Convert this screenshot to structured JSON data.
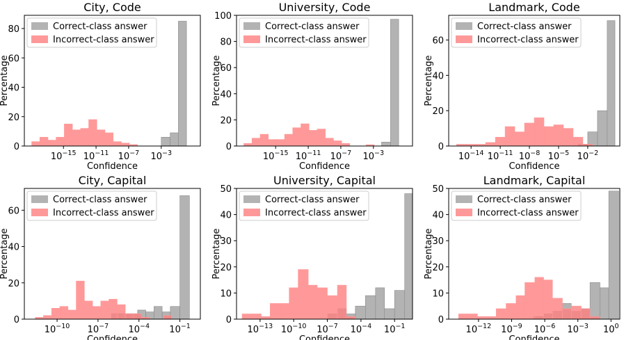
{
  "legend_labels": {
    "correct": "Correct-class answer",
    "incorrect": "Incorrect-class answer"
  },
  "colors": {
    "correct": "#a0a0a0",
    "incorrect": "#ff8080",
    "overlap": "#b25a5a"
  },
  "chart_data": [
    {
      "type": "histogram",
      "title": "City, Code",
      "xlabel": "Confidence",
      "ylabel": "Percentage",
      "x_scale": "log10",
      "x_ticks": [
        "10^-15",
        "10^-11",
        "10^-7",
        "10^-3"
      ],
      "xlim_log10": [
        -19.8,
        1.8
      ],
      "ylim": [
        0,
        89
      ],
      "y_ticks": [
        0,
        20,
        40,
        60,
        80
      ],
      "legend_position": "upper-left",
      "series": [
        {
          "name": "Correct-class answer",
          "bins": [
            {
              "from": -3.0,
              "to": -1.9,
              "value": 6
            },
            {
              "from": -1.9,
              "to": -0.9,
              "value": 9
            },
            {
              "from": -0.9,
              "to": 0.1,
              "value": 85
            }
          ]
        },
        {
          "name": "Incorrect-class answer",
          "bins": [
            {
              "from": -18.9,
              "to": -17.9,
              "value": 3
            },
            {
              "from": -17.9,
              "to": -16.9,
              "value": 6
            },
            {
              "from": -16.9,
              "to": -15.9,
              "value": 4
            },
            {
              "from": -15.9,
              "to": -14.9,
              "value": 6
            },
            {
              "from": -14.9,
              "to": -13.9,
              "value": 15
            },
            {
              "from": -13.9,
              "to": -12.9,
              "value": 11
            },
            {
              "from": -12.9,
              "to": -11.9,
              "value": 12
            },
            {
              "from": -11.9,
              "to": -10.9,
              "value": 18
            },
            {
              "from": -10.9,
              "to": -9.9,
              "value": 11
            },
            {
              "from": -9.9,
              "to": -8.9,
              "value": 9
            },
            {
              "from": -8.9,
              "to": -7.9,
              "value": 3
            },
            {
              "from": -7.9,
              "to": -6.9,
              "value": 2
            },
            {
              "from": -6.9,
              "to": -5.9,
              "value": 1
            }
          ]
        }
      ]
    },
    {
      "type": "histogram",
      "title": "University, Code",
      "xlabel": "Confidence",
      "ylabel": "Percentage",
      "x_scale": "log10",
      "x_ticks": [
        "10^-15",
        "10^-11",
        "10^-7",
        "10^-3"
      ],
      "xlim_log10": [
        -19.8,
        1.8
      ],
      "ylim": [
        0,
        100
      ],
      "y_ticks": [
        0,
        20,
        40,
        60,
        80,
        100
      ],
      "legend_position": "upper-left",
      "series": [
        {
          "name": "Correct-class answer",
          "bins": [
            {
              "from": -2.0,
              "to": -0.9,
              "value": 3
            },
            {
              "from": -0.9,
              "to": 0.1,
              "value": 97
            }
          ]
        },
        {
          "name": "Incorrect-class answer",
          "bins": [
            {
              "from": -18.9,
              "to": -17.9,
              "value": 2
            },
            {
              "from": -17.9,
              "to": -16.9,
              "value": 6
            },
            {
              "from": -16.9,
              "to": -15.9,
              "value": 9
            },
            {
              "from": -15.9,
              "to": -14.9,
              "value": 5
            },
            {
              "from": -14.9,
              "to": -13.9,
              "value": 5
            },
            {
              "from": -13.9,
              "to": -12.9,
              "value": 9
            },
            {
              "from": -12.9,
              "to": -11.9,
              "value": 14
            },
            {
              "from": -11.9,
              "to": -10.9,
              "value": 17
            },
            {
              "from": -10.9,
              "to": -9.9,
              "value": 12
            },
            {
              "from": -9.9,
              "to": -8.9,
              "value": 13
            },
            {
              "from": -8.9,
              "to": -7.9,
              "value": 6
            },
            {
              "from": -7.9,
              "to": -6.9,
              "value": 4
            },
            {
              "from": -6.9,
              "to": -5.9,
              "value": 2
            },
            {
              "from": -3.9,
              "to": -2.9,
              "value": 1
            }
          ]
        }
      ]
    },
    {
      "type": "histogram",
      "title": "Landmark, Code",
      "xlabel": "Confidence",
      "ylabel": "Percentage",
      "x_scale": "log10",
      "x_ticks": [
        "10^-14",
        "10^-11",
        "10^-8",
        "10^-5",
        "10^-2"
      ],
      "xlim_log10": [
        -16.3,
        1.3
      ],
      "ylim": [
        0,
        74
      ],
      "y_ticks": [
        0,
        20,
        40,
        60
      ],
      "legend_position": "upper-left",
      "series": [
        {
          "name": "Correct-class answer",
          "bins": [
            {
              "from": -3.0,
              "to": -2.0,
              "value": 1
            },
            {
              "from": -2.0,
              "to": -1.0,
              "value": 8
            },
            {
              "from": -1.0,
              "to": 0.0,
              "value": 20
            },
            {
              "from": 0.0,
              "to": 0.8,
              "value": 71
            }
          ]
        },
        {
          "name": "Incorrect-class answer",
          "bins": [
            {
              "from": -15.5,
              "to": -14.5,
              "value": 1
            },
            {
              "from": -14.5,
              "to": -13.5,
              "value": 1
            },
            {
              "from": -13.5,
              "to": -12.5,
              "value": 1
            },
            {
              "from": -12.5,
              "to": -11.5,
              "value": 2
            },
            {
              "from": -11.5,
              "to": -10.5,
              "value": 5
            },
            {
              "from": -10.5,
              "to": -9.5,
              "value": 11
            },
            {
              "from": -9.5,
              "to": -8.5,
              "value": 8
            },
            {
              "from": -8.5,
              "to": -7.5,
              "value": 13
            },
            {
              "from": -7.5,
              "to": -6.5,
              "value": 16
            },
            {
              "from": -6.5,
              "to": -5.5,
              "value": 11
            },
            {
              "from": -5.5,
              "to": -4.5,
              "value": 12
            },
            {
              "from": -4.5,
              "to": -3.5,
              "value": 10
            },
            {
              "from": -3.5,
              "to": -2.5,
              "value": 5
            },
            {
              "from": -2.5,
              "to": -1.5,
              "value": 1
            }
          ]
        }
      ]
    },
    {
      "type": "histogram",
      "title": "City, Capital",
      "xlabel": "Confidence",
      "ylabel": "Percentage",
      "x_scale": "log10",
      "x_ticks": [
        "10^-10",
        "10^-7",
        "10^-4",
        "10^-1"
      ],
      "xlim_log10": [
        -12.4,
        0.5
      ],
      "ylim": [
        0,
        72
      ],
      "y_ticks": [
        0,
        20,
        40,
        60
      ],
      "legend_position": "upper-left",
      "series": [
        {
          "name": "Correct-class answer",
          "bins": [
            {
              "from": -6.0,
              "to": -5.4,
              "value": 3
            },
            {
              "from": -5.4,
              "to": -4.8,
              "value": 3
            },
            {
              "from": -4.8,
              "to": -4.1,
              "value": 3
            },
            {
              "from": -4.1,
              "to": -3.5,
              "value": 5
            },
            {
              "from": -3.5,
              "to": -2.9,
              "value": 4
            },
            {
              "from": -2.9,
              "to": -2.3,
              "value": 7
            },
            {
              "from": -2.3,
              "to": -1.7,
              "value": 4
            },
            {
              "from": -1.7,
              "to": -1.0,
              "value": 7
            },
            {
              "from": -1.0,
              "to": -0.3,
              "value": 68
            }
          ]
        },
        {
          "name": "Incorrect-class answer",
          "bins": [
            {
              "from": -11.6,
              "to": -11.0,
              "value": 1
            },
            {
              "from": -11.0,
              "to": -10.4,
              "value": 2
            },
            {
              "from": -10.4,
              "to": -9.8,
              "value": 6
            },
            {
              "from": -9.8,
              "to": -9.2,
              "value": 7
            },
            {
              "from": -9.2,
              "to": -8.6,
              "value": 5
            },
            {
              "from": -8.6,
              "to": -8.0,
              "value": 21
            },
            {
              "from": -8.0,
              "to": -7.4,
              "value": 10
            },
            {
              "from": -7.4,
              "to": -6.8,
              "value": 7
            },
            {
              "from": -6.8,
              "to": -6.2,
              "value": 10
            },
            {
              "from": -6.2,
              "to": -5.6,
              "value": 11
            },
            {
              "from": -5.6,
              "to": -5.0,
              "value": 8
            },
            {
              "from": -5.0,
              "to": -4.4,
              "value": 3
            },
            {
              "from": -4.4,
              "to": -3.8,
              "value": 3
            },
            {
              "from": -3.8,
              "to": -3.2,
              "value": 1
            },
            {
              "from": -2.2,
              "to": -1.6,
              "value": 2
            }
          ]
        }
      ]
    },
    {
      "type": "histogram",
      "title": "University, Capital",
      "xlabel": "Confidence",
      "ylabel": "Percentage",
      "x_scale": "log10",
      "x_ticks": [
        "10^-13",
        "10^-10",
        "10^-7",
        "10^-4",
        "10^-1"
      ],
      "xlim_log10": [
        -15.1,
        0.6
      ],
      "ylim": [
        0,
        50
      ],
      "y_ticks": [
        0,
        10,
        20,
        30,
        40,
        50
      ],
      "legend_position": "upper-left",
      "series": [
        {
          "name": "Correct-class answer",
          "bins": [
            {
              "from": -7.0,
              "to": -6.1,
              "value": 2
            },
            {
              "from": -6.1,
              "to": -5.3,
              "value": 4
            },
            {
              "from": -5.3,
              "to": -4.5,
              "value": 2
            },
            {
              "from": -4.5,
              "to": -3.6,
              "value": 5
            },
            {
              "from": -3.6,
              "to": -2.7,
              "value": 9
            },
            {
              "from": -2.7,
              "to": -1.9,
              "value": 12
            },
            {
              "from": -1.9,
              "to": -1.0,
              "value": 4
            },
            {
              "from": -1.0,
              "to": -0.1,
              "value": 11
            },
            {
              "from": -0.1,
              "to": 0.7,
              "value": 48
            }
          ]
        },
        {
          "name": "Incorrect-class answer",
          "bins": [
            {
              "from": -14.6,
              "to": -13.8,
              "value": 2
            },
            {
              "from": -13.8,
              "to": -12.9,
              "value": 2
            },
            {
              "from": -12.9,
              "to": -12.1,
              "value": 1
            },
            {
              "from": -12.1,
              "to": -11.2,
              "value": 6
            },
            {
              "from": -11.2,
              "to": -10.4,
              "value": 6
            },
            {
              "from": -10.4,
              "to": -9.6,
              "value": 12
            },
            {
              "from": -9.6,
              "to": -8.7,
              "value": 19
            },
            {
              "from": -8.7,
              "to": -7.9,
              "value": 13
            },
            {
              "from": -7.9,
              "to": -7.0,
              "value": 12
            },
            {
              "from": -7.0,
              "to": -6.1,
              "value": 9
            },
            {
              "from": -6.1,
              "to": -5.3,
              "value": 13
            },
            {
              "from": -5.3,
              "to": -4.5,
              "value": 1
            }
          ]
        }
      ]
    },
    {
      "type": "histogram",
      "title": "Landmark, Capital",
      "xlabel": "Confidence",
      "ylabel": "Percentage",
      "x_scale": "log10",
      "x_ticks": [
        "10^-12",
        "10^-9",
        "10^-6",
        "10^-3",
        "10^0"
      ],
      "xlim_log10": [
        -14.7,
        0.8
      ],
      "ylim": [
        0,
        50
      ],
      "y_ticks": [
        0,
        10,
        20,
        30,
        40,
        50
      ],
      "legend_position": "upper-left",
      "series": [
        {
          "name": "Correct-class answer",
          "bins": [
            {
              "from": -7.0,
              "to": -6.1,
              "value": 1
            },
            {
              "from": -6.1,
              "to": -5.3,
              "value": 2
            },
            {
              "from": -5.3,
              "to": -4.4,
              "value": 3
            },
            {
              "from": -4.4,
              "to": -3.6,
              "value": 6
            },
            {
              "from": -3.6,
              "to": -2.7,
              "value": 3
            },
            {
              "from": -2.7,
              "to": -1.9,
              "value": 4
            },
            {
              "from": -1.9,
              "to": -1.0,
              "value": 14
            },
            {
              "from": -1.0,
              "to": -0.2,
              "value": 12
            },
            {
              "from": -0.2,
              "to": 0.7,
              "value": 49
            }
          ]
        },
        {
          "name": "Incorrect-class answer",
          "bins": [
            {
              "from": -13.8,
              "to": -12.9,
              "value": 2
            },
            {
              "from": -12.9,
              "to": -12.1,
              "value": 2
            },
            {
              "from": -12.1,
              "to": -11.2,
              "value": 1
            },
            {
              "from": -11.2,
              "to": -10.4,
              "value": 1
            },
            {
              "from": -10.4,
              "to": -9.5,
              "value": 4
            },
            {
              "from": -9.5,
              "to": -8.6,
              "value": 6
            },
            {
              "from": -8.6,
              "to": -7.8,
              "value": 9
            },
            {
              "from": -7.8,
              "to": -6.9,
              "value": 14
            },
            {
              "from": -6.9,
              "to": -6.1,
              "value": 16
            },
            {
              "from": -6.1,
              "to": -5.3,
              "value": 15
            },
            {
              "from": -5.3,
              "to": -4.4,
              "value": 8
            },
            {
              "from": -4.4,
              "to": -3.6,
              "value": 4
            },
            {
              "from": -3.6,
              "to": -2.7,
              "value": 5
            },
            {
              "from": -2.7,
              "to": -1.9,
              "value": 4
            },
            {
              "from": -1.9,
              "to": -1.0,
              "value": 1
            }
          ]
        }
      ]
    }
  ]
}
